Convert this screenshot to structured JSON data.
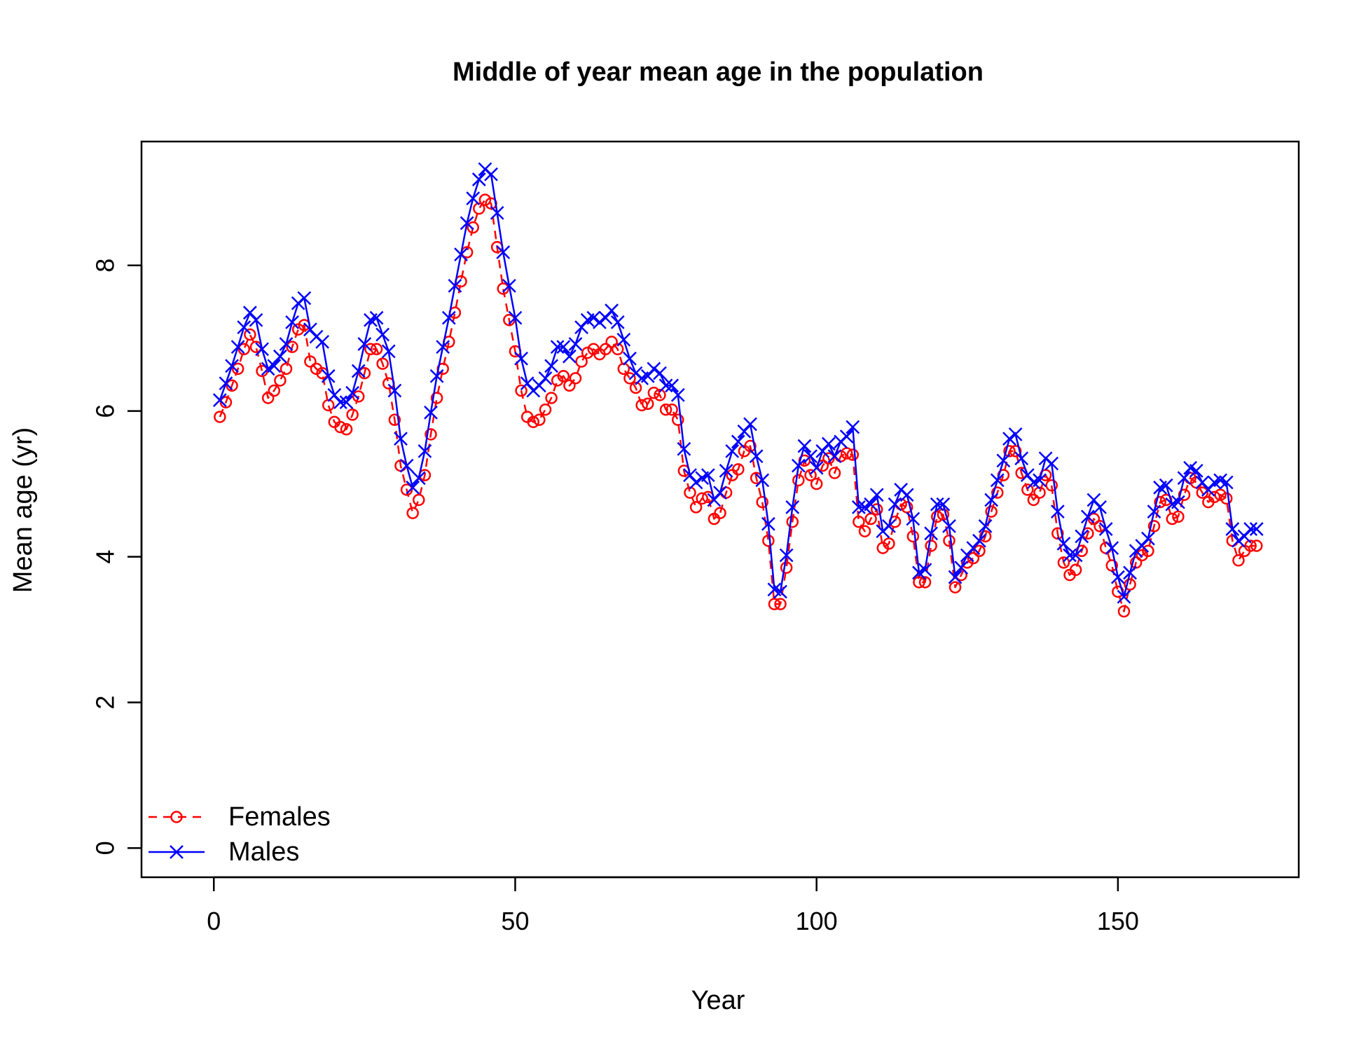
{
  "chart_data": {
    "type": "line",
    "title": "Middle of year mean age in the population",
    "xlabel": "Year",
    "ylabel": "Mean age (yr)",
    "xlim": [
      -12,
      180
    ],
    "ylim": [
      -0.4,
      9.7
    ],
    "x_ticks": [
      0,
      50,
      100,
      150
    ],
    "y_ticks": [
      0,
      2,
      4,
      6,
      8
    ],
    "grid": false,
    "legend_position": "bottom-left",
    "x": [
      1,
      2,
      3,
      4,
      5,
      6,
      7,
      8,
      9,
      10,
      11,
      12,
      13,
      14,
      15,
      16,
      17,
      18,
      19,
      20,
      21,
      22,
      23,
      24,
      25,
      26,
      27,
      28,
      29,
      30,
      31,
      32,
      33,
      34,
      35,
      36,
      37,
      38,
      39,
      40,
      41,
      42,
      43,
      44,
      45,
      46,
      47,
      48,
      49,
      50,
      51,
      52,
      53,
      54,
      55,
      56,
      57,
      58,
      59,
      60,
      61,
      62,
      63,
      64,
      65,
      66,
      67,
      68,
      69,
      70,
      71,
      72,
      73,
      74,
      75,
      76,
      77,
      78,
      79,
      80,
      81,
      82,
      83,
      84,
      85,
      86,
      87,
      88,
      89,
      90,
      91,
      92,
      93,
      94,
      95,
      96,
      97,
      98,
      99,
      100,
      101,
      102,
      103,
      104,
      105,
      106,
      107,
      108,
      109,
      110,
      111,
      112,
      113,
      114,
      115,
      116,
      117,
      118,
      119,
      120,
      121,
      122,
      123,
      124,
      125,
      126,
      127,
      128,
      129,
      130,
      131,
      132,
      133,
      134,
      135,
      136,
      137,
      138,
      139,
      140,
      141,
      142,
      143,
      144,
      145,
      146,
      147,
      148,
      149,
      150,
      151,
      152,
      153,
      154,
      155,
      156,
      157,
      158,
      159,
      160,
      161,
      162,
      163,
      164,
      165,
      166,
      167,
      168,
      169,
      170,
      171,
      172,
      173
    ],
    "series": [
      {
        "name": "Females",
        "color": "#ff0000",
        "line_style": "dashed",
        "marker": "circle",
        "values": [
          5.92,
          6.12,
          6.35,
          6.58,
          6.85,
          7.05,
          6.88,
          6.55,
          6.18,
          6.28,
          6.42,
          6.58,
          6.88,
          7.12,
          7.18,
          6.68,
          6.58,
          6.52,
          6.08,
          5.85,
          5.78,
          5.75,
          5.95,
          6.2,
          6.52,
          6.85,
          6.85,
          6.65,
          6.38,
          5.88,
          5.25,
          4.92,
          4.6,
          4.78,
          5.12,
          5.68,
          6.18,
          6.58,
          6.95,
          7.35,
          7.78,
          8.18,
          8.52,
          8.78,
          8.9,
          8.85,
          8.25,
          7.68,
          7.25,
          6.82,
          6.28,
          5.92,
          5.85,
          5.88,
          6.02,
          6.18,
          6.42,
          6.48,
          6.35,
          6.45,
          6.68,
          6.8,
          6.85,
          6.78,
          6.85,
          6.95,
          6.85,
          6.58,
          6.45,
          6.32,
          6.08,
          6.1,
          6.25,
          6.22,
          6.02,
          6.02,
          5.88,
          5.18,
          4.88,
          4.68,
          4.8,
          4.82,
          4.52,
          4.6,
          4.88,
          5.12,
          5.2,
          5.45,
          5.52,
          5.08,
          4.75,
          4.22,
          3.35,
          3.35,
          3.85,
          4.48,
          5.05,
          5.32,
          5.12,
          5.0,
          5.25,
          5.35,
          5.15,
          5.38,
          5.42,
          5.4,
          4.48,
          4.35,
          4.52,
          4.65,
          4.12,
          4.18,
          4.48,
          4.72,
          4.68,
          4.28,
          3.65,
          3.65,
          4.15,
          4.55,
          4.58,
          4.22,
          3.58,
          3.75,
          3.92,
          3.98,
          4.08,
          4.28,
          4.62,
          4.88,
          5.12,
          5.45,
          5.45,
          5.15,
          4.92,
          4.78,
          4.88,
          5.12,
          4.98,
          4.32,
          3.92,
          3.75,
          3.82,
          4.08,
          4.32,
          4.52,
          4.42,
          4.12,
          3.88,
          3.52,
          3.25,
          3.62,
          3.92,
          4.02,
          4.08,
          4.42,
          4.75,
          4.78,
          4.52,
          4.55,
          4.85,
          5.08,
          5.02,
          4.88,
          4.75,
          4.82,
          4.85,
          4.8,
          4.22,
          3.95,
          4.08,
          4.15,
          4.15
        ]
      },
      {
        "name": "Males",
        "color": "#0000ff",
        "line_style": "solid",
        "marker": "x",
        "values": [
          6.15,
          6.38,
          6.62,
          6.88,
          7.15,
          7.35,
          7.25,
          6.85,
          6.58,
          6.62,
          6.75,
          6.92,
          7.22,
          7.48,
          7.55,
          7.12,
          7.02,
          6.95,
          6.48,
          6.22,
          6.12,
          6.12,
          6.25,
          6.55,
          6.92,
          7.25,
          7.28,
          7.05,
          6.82,
          6.28,
          5.62,
          5.25,
          4.95,
          5.08,
          5.45,
          5.98,
          6.48,
          6.88,
          7.28,
          7.72,
          8.15,
          8.58,
          8.92,
          9.18,
          9.32,
          9.25,
          8.72,
          8.18,
          7.72,
          7.28,
          6.72,
          6.38,
          6.28,
          6.35,
          6.45,
          6.62,
          6.88,
          6.88,
          6.75,
          6.92,
          7.15,
          7.25,
          7.28,
          7.22,
          7.28,
          7.38,
          7.22,
          6.98,
          6.72,
          6.52,
          6.45,
          6.48,
          6.58,
          6.52,
          6.35,
          6.35,
          6.22,
          5.48,
          5.12,
          5.02,
          5.08,
          5.12,
          4.78,
          4.88,
          5.18,
          5.45,
          5.58,
          5.72,
          5.82,
          5.38,
          5.05,
          4.45,
          3.55,
          3.52,
          4.02,
          4.68,
          5.25,
          5.52,
          5.38,
          5.22,
          5.45,
          5.55,
          5.38,
          5.58,
          5.65,
          5.78,
          4.68,
          4.68,
          4.72,
          4.85,
          4.35,
          4.42,
          4.72,
          4.92,
          4.85,
          4.52,
          3.78,
          3.82,
          4.32,
          4.72,
          4.72,
          4.42,
          3.72,
          3.85,
          4.02,
          4.12,
          4.22,
          4.42,
          4.78,
          5.05,
          5.32,
          5.62,
          5.68,
          5.35,
          5.12,
          5.02,
          5.05,
          5.35,
          5.28,
          4.62,
          4.18,
          4.02,
          4.02,
          4.28,
          4.55,
          4.78,
          4.68,
          4.38,
          4.12,
          3.72,
          3.45,
          3.78,
          4.08,
          4.15,
          4.25,
          4.62,
          4.95,
          4.98,
          4.72,
          4.75,
          5.08,
          5.22,
          5.18,
          5.02,
          4.92,
          5.02,
          5.05,
          5.02,
          4.38,
          4.22,
          4.28,
          4.38,
          4.38
        ]
      }
    ]
  }
}
